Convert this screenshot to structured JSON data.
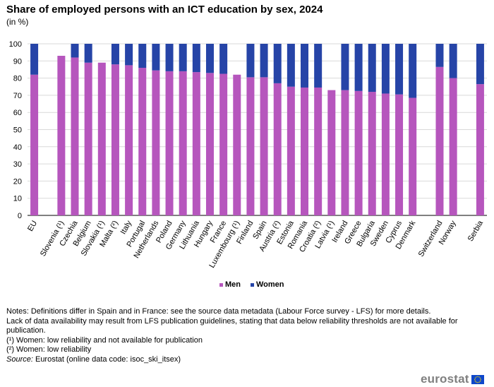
{
  "header": {
    "title": "Share of employed persons with an ICT education by sex, 2024",
    "subtitle": "(in %)"
  },
  "chart_data": {
    "type": "bar",
    "stacked": true,
    "title": "Share of employed persons with an ICT education by sex, 2024",
    "ylabel": "(in %)",
    "ylim": [
      0,
      100
    ],
    "yticks": [
      0,
      10,
      20,
      30,
      40,
      50,
      60,
      70,
      80,
      90,
      100
    ],
    "grid": true,
    "legend_position": "bottom-center",
    "categories": [
      "EU",
      "",
      "Slovenia (¹)",
      "Czechia",
      "Belgium",
      "Slovakia (¹)",
      "Malta (²)",
      "Italy",
      "Portugal",
      "Netherlands",
      "Poland",
      "Germany",
      "Lithuania",
      "Hungary",
      "France",
      "Luxembourg (¹)",
      "Finland",
      "Spain",
      "Austria (²)",
      "Estonia",
      "Romania",
      "Croatia (²)",
      "Latvia (¹)",
      "Ireland",
      "Greece",
      "Bulgaria",
      "Sweden",
      "Cyprus",
      "Denmark",
      "",
      "Switzerland",
      "Norway",
      "",
      "Serbia"
    ],
    "series": [
      {
        "name": "Men",
        "color": "#b656bd",
        "values": [
          82,
          null,
          93,
          92,
          89,
          89,
          88,
          87.5,
          86,
          84.5,
          84,
          84,
          83.5,
          83,
          82.5,
          82,
          80.5,
          80.5,
          77,
          75,
          74.5,
          74.5,
          73,
          73,
          72.5,
          72,
          71,
          70.5,
          68.5,
          null,
          86.5,
          80,
          null,
          76.5
        ]
      },
      {
        "name": "Women",
        "color": "#2644a7",
        "values": [
          18,
          null,
          null,
          8,
          11,
          null,
          12,
          12.5,
          14,
          15.5,
          16,
          16,
          16.5,
          17,
          17.5,
          null,
          19.5,
          19.5,
          23,
          25,
          25.5,
          25.5,
          null,
          27,
          27.5,
          28,
          29,
          29.5,
          31.5,
          null,
          13.5,
          20,
          null,
          23.5
        ]
      }
    ]
  },
  "legend": [
    {
      "label": "Men",
      "color": "#b656bd"
    },
    {
      "label": "Women",
      "color": "#2644a7"
    }
  ],
  "notes": {
    "line1": "Notes: Definitions differ in Spain and in France: see the source data metadata (Labour Force survey - LFS) for more details.",
    "line2": "Lack of data availability may result from LFS publication guidelines, stating that data below reliability thresholds are not available for publication.",
    "line3": "(¹) Women: low reliability and not available for publication",
    "line4": "(²) Women: low reliability",
    "source_label": "Source:",
    "source_text": " Eurostat (online data code: isoc_ski_itsex)"
  },
  "logo": {
    "text": "eurostat"
  }
}
